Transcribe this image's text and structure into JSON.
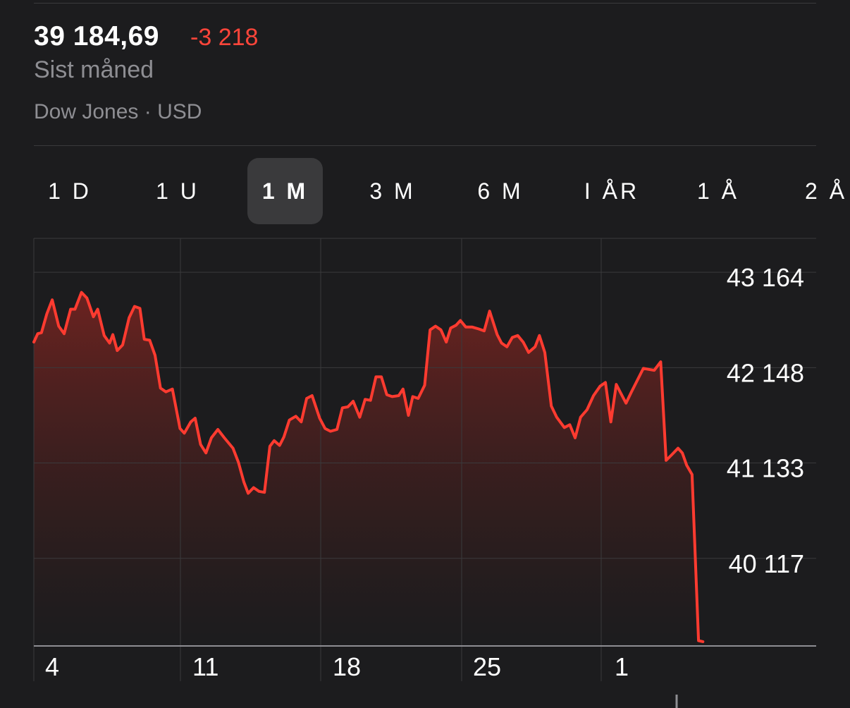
{
  "header": {
    "price": "39 184,69",
    "change": "-3 218",
    "period": "Sist måned",
    "source": "Dow Jones · USD"
  },
  "range_tabs": [
    {
      "label": "1 D",
      "active": false
    },
    {
      "label": "1 U",
      "active": false
    },
    {
      "label": "1 M",
      "active": true
    },
    {
      "label": "3 M",
      "active": false
    },
    {
      "label": "6 M",
      "active": false
    },
    {
      "label": "I ÅR",
      "active": false
    },
    {
      "label": "1 Å",
      "active": false
    },
    {
      "label": "2 Å",
      "active": false
    }
  ],
  "colors": {
    "background": "#1c1c1e",
    "line": "#ff3b30",
    "negative": "#ff453a",
    "muted": "#8e8e93",
    "grid": "#3a3a3c"
  },
  "chart_data": {
    "type": "area",
    "title": "",
    "xlabel": "",
    "ylabel": "",
    "x_tick_labels": [
      "4",
      "11",
      "18",
      "25",
      "1"
    ],
    "y_tick_labels": [
      "43 164",
      "42 148",
      "41 133",
      "40 117"
    ],
    "y_ticks": [
      43164,
      42148,
      41133,
      40117
    ],
    "ylim": [
      39184,
      43450
    ],
    "xlim": [
      0,
      30.5
    ],
    "grid": true,
    "series": [
      {
        "values": [
          [
            0.0,
            42420
          ],
          [
            0.18,
            42510
          ],
          [
            0.35,
            42520
          ],
          [
            0.6,
            42720
          ],
          [
            0.85,
            42870
          ],
          [
            1.15,
            42590
          ],
          [
            1.4,
            42510
          ],
          [
            1.7,
            42770
          ],
          [
            1.9,
            42770
          ],
          [
            2.2,
            42950
          ],
          [
            2.45,
            42890
          ],
          [
            2.75,
            42690
          ],
          [
            2.95,
            42770
          ],
          [
            3.25,
            42490
          ],
          [
            3.5,
            42410
          ],
          [
            3.65,
            42500
          ],
          [
            3.85,
            42330
          ],
          [
            4.1,
            42390
          ],
          [
            4.4,
            42680
          ],
          [
            4.65,
            42800
          ],
          [
            4.9,
            42780
          ],
          [
            5.1,
            42450
          ],
          [
            5.35,
            42440
          ],
          [
            5.6,
            42280
          ],
          [
            5.85,
            41930
          ],
          [
            6.1,
            41890
          ],
          [
            6.4,
            41920
          ],
          [
            6.75,
            41500
          ],
          [
            6.95,
            41450
          ],
          [
            7.25,
            41570
          ],
          [
            7.45,
            41610
          ],
          [
            7.7,
            41330
          ],
          [
            7.95,
            41240
          ],
          [
            8.2,
            41400
          ],
          [
            8.5,
            41490
          ],
          [
            8.8,
            41400
          ],
          [
            9.2,
            41290
          ],
          [
            9.45,
            41140
          ],
          [
            9.7,
            40930
          ],
          [
            9.9,
            40810
          ],
          [
            10.15,
            40870
          ],
          [
            10.4,
            40830
          ],
          [
            10.65,
            40820
          ],
          [
            10.9,
            41310
          ],
          [
            11.1,
            41370
          ],
          [
            11.35,
            41320
          ],
          [
            11.55,
            41410
          ],
          [
            11.8,
            41590
          ],
          [
            12.1,
            41630
          ],
          [
            12.35,
            41570
          ],
          [
            12.6,
            41820
          ],
          [
            12.85,
            41850
          ],
          [
            13.2,
            41610
          ],
          [
            13.45,
            41500
          ],
          [
            13.7,
            41470
          ],
          [
            14.0,
            41490
          ],
          [
            14.25,
            41720
          ],
          [
            14.5,
            41730
          ],
          [
            14.75,
            41790
          ],
          [
            15.05,
            41620
          ],
          [
            15.3,
            41810
          ],
          [
            15.55,
            41800
          ],
          [
            15.8,
            42050
          ],
          [
            16.05,
            42050
          ],
          [
            16.3,
            41860
          ],
          [
            16.55,
            41840
          ],
          [
            16.85,
            41850
          ],
          [
            17.05,
            41920
          ],
          [
            17.3,
            41640
          ],
          [
            17.5,
            41840
          ],
          [
            17.75,
            41820
          ],
          [
            18.05,
            41960
          ],
          [
            18.3,
            42550
          ],
          [
            18.55,
            42590
          ],
          [
            18.8,
            42550
          ],
          [
            19.05,
            42420
          ],
          [
            19.25,
            42570
          ],
          [
            19.5,
            42600
          ],
          [
            19.7,
            42650
          ],
          [
            19.95,
            42580
          ],
          [
            20.25,
            42580
          ],
          [
            20.55,
            42560
          ],
          [
            20.8,
            42540
          ],
          [
            21.05,
            42750
          ],
          [
            21.4,
            42500
          ],
          [
            21.6,
            42410
          ],
          [
            21.85,
            42370
          ],
          [
            22.1,
            42470
          ],
          [
            22.35,
            42490
          ],
          [
            22.6,
            42420
          ],
          [
            22.85,
            42310
          ],
          [
            23.15,
            42370
          ],
          [
            23.35,
            42490
          ],
          [
            23.6,
            42310
          ],
          [
            23.9,
            41740
          ],
          [
            24.15,
            41620
          ],
          [
            24.5,
            41510
          ],
          [
            24.75,
            41540
          ],
          [
            25.0,
            41400
          ],
          [
            25.25,
            41620
          ],
          [
            25.55,
            41700
          ],
          [
            25.85,
            41850
          ],
          [
            26.15,
            41950
          ],
          [
            26.4,
            41990
          ],
          [
            26.65,
            41570
          ],
          [
            26.9,
            41970
          ],
          [
            27.1,
            41880
          ],
          [
            27.35,
            41770
          ],
          [
            27.6,
            41890
          ],
          [
            28.15,
            42140
          ],
          [
            28.4,
            42130
          ],
          [
            28.65,
            42120
          ],
          [
            28.95,
            42210
          ],
          [
            29.2,
            41160
          ],
          [
            29.5,
            41230
          ],
          [
            29.75,
            41290
          ],
          [
            29.95,
            41240
          ],
          [
            30.15,
            41110
          ],
          [
            30.4,
            41010
          ],
          [
            30.7,
            39240
          ],
          [
            30.9,
            39230
          ]
        ]
      }
    ]
  }
}
